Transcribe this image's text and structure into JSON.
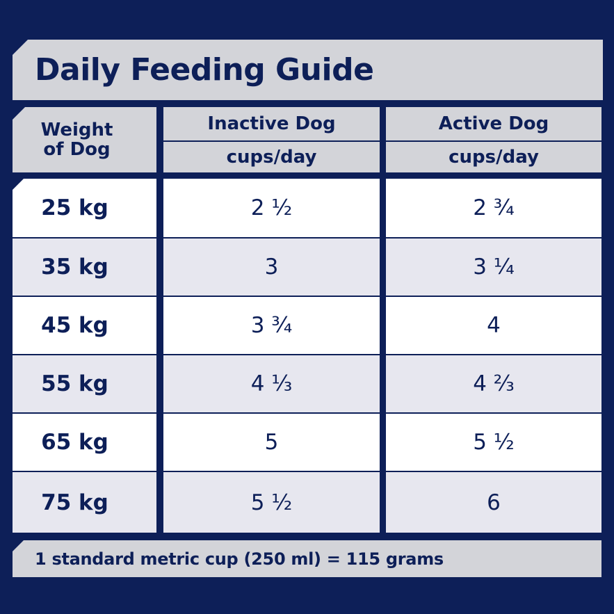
{
  "title": "Daily Feeding Guide",
  "columns": {
    "weight_line1": "Weight",
    "weight_line2": "of Dog",
    "inactive": "Inactive Dog",
    "active": "Active Dog",
    "unit": "cups/day"
  },
  "rows": [
    {
      "weight": "25 kg",
      "inactive": "2 ½",
      "active": "2 ¾"
    },
    {
      "weight": "35 kg",
      "inactive": "3",
      "active": "3 ¼"
    },
    {
      "weight": "45 kg",
      "inactive": "3 ¾",
      "active": "4"
    },
    {
      "weight": "55 kg",
      "inactive": "4 ⅓",
      "active": "4 ⅔"
    },
    {
      "weight": "65 kg",
      "inactive": "5",
      "active": "5 ½"
    },
    {
      "weight": "75 kg",
      "inactive": "5 ½",
      "active": "6"
    }
  ],
  "footer": "1 standard metric cup (250 ml) = 115 grams",
  "colors": {
    "background": "#0d1f58",
    "header_grey": "#d3d4d9",
    "row_white": "#ffffff",
    "row_pale": "#e7e7ef"
  }
}
